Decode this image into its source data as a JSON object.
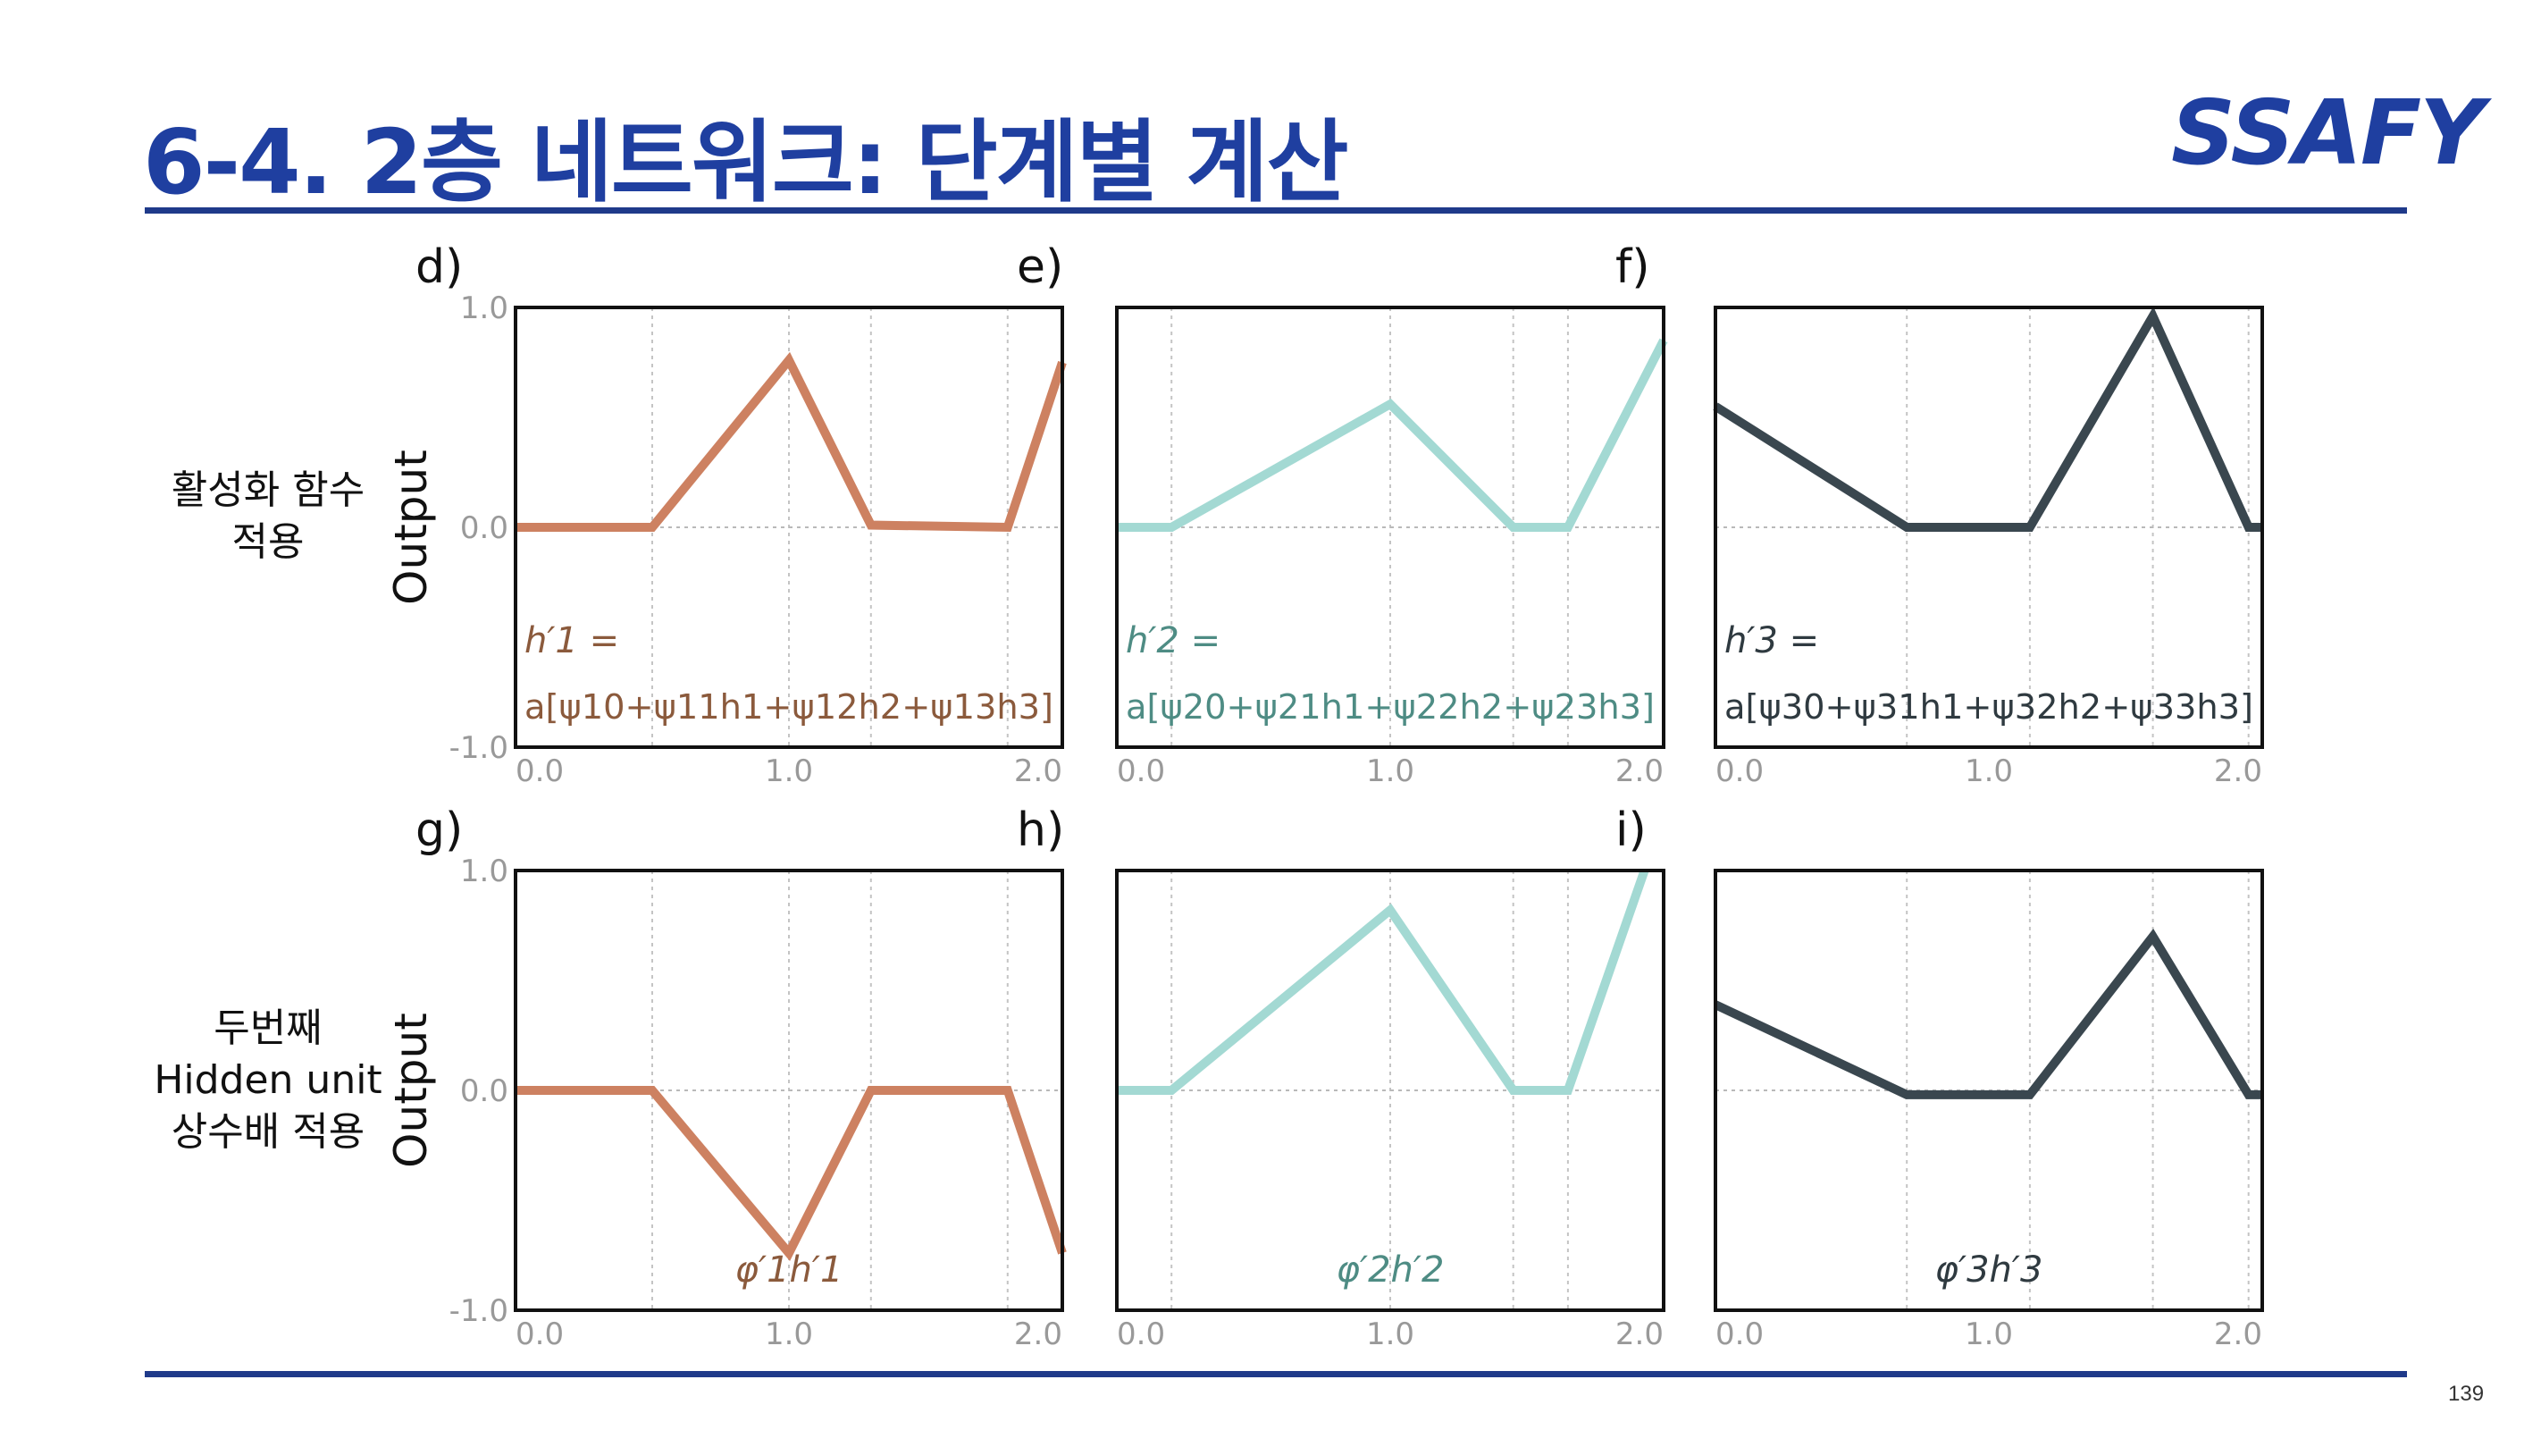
{
  "slide": {
    "title": "6-4. 2층 네트워크: 단계별 계산",
    "logo": "SSAFY",
    "page_number": "139",
    "row_labels": [
      [
        "활성화 함수",
        "적용"
      ],
      [
        "두번째",
        "Hidden unit",
        "상수배 적용"
      ]
    ]
  },
  "colors": {
    "title": "#1f3fa0",
    "rule": "#1f3a8a",
    "series_1": "#cd8161",
    "series_2": "#a3d9d3",
    "series_3": "#3a474f"
  },
  "chart_data": [
    {
      "panel": "d)",
      "type": "line",
      "ylabel": "Output",
      "xlim": [
        0,
        2
      ],
      "ylim": [
        -1,
        1
      ],
      "xticks": [
        "0.0",
        "1.0",
        "2.0"
      ],
      "yticks": [
        "1.0",
        "0.0",
        "-1.0"
      ],
      "vlines": [
        0.5,
        1.0,
        1.3,
        1.8
      ],
      "x": [
        0.0,
        0.5,
        1.0,
        1.3,
        1.8,
        2.0
      ],
      "y": [
        0.0,
        0.0,
        0.76,
        0.01,
        0.0,
        0.75
      ],
      "color": "#cd8161",
      "annotation": [
        "h′1 =",
        "a[ψ10+ψ11h1+ψ12h2+ψ13h3]"
      ]
    },
    {
      "panel": "e)",
      "type": "line",
      "ylabel": "",
      "xlim": [
        0,
        2
      ],
      "ylim": [
        -1,
        1
      ],
      "xticks": [
        "0.0",
        "1.0",
        "2.0"
      ],
      "yticks": [],
      "vlines": [
        0.2,
        1.0,
        1.45,
        1.65
      ],
      "x": [
        0.0,
        0.2,
        1.0,
        1.45,
        1.65,
        2.0
      ],
      "y": [
        0.0,
        0.0,
        0.56,
        0.0,
        0.0,
        0.85
      ],
      "color": "#a3d9d3",
      "annotation": [
        "h′2 =",
        "a[ψ20+ψ21h1+ψ22h2+ψ23h3]"
      ]
    },
    {
      "panel": "f)",
      "type": "line",
      "ylabel": "",
      "xlim": [
        0,
        2
      ],
      "ylim": [
        -1,
        1
      ],
      "xticks": [
        "0.0",
        "1.0",
        "2.0"
      ],
      "yticks": [],
      "vlines": [
        0.7,
        1.15,
        1.6,
        1.95
      ],
      "x": [
        0.0,
        0.7,
        1.15,
        1.6,
        1.95,
        2.0
      ],
      "y": [
        0.55,
        0.0,
        0.0,
        0.96,
        0.0,
        0.0
      ],
      "color": "#3a474f",
      "annotation": [
        "h′3 =",
        "a[ψ30+ψ31h1+ψ32h2+ψ33h3]"
      ]
    },
    {
      "panel": "g)",
      "type": "line",
      "ylabel": "Output",
      "xlim": [
        0,
        2
      ],
      "ylim": [
        -1,
        1
      ],
      "xticks": [
        "0.0",
        "1.0",
        "2.0"
      ],
      "yticks": [
        "1.0",
        "0.0",
        "-1.0"
      ],
      "vlines": [
        0.5,
        1.0,
        1.3,
        1.8
      ],
      "x": [
        0.0,
        0.5,
        1.0,
        1.3,
        1.8,
        2.0
      ],
      "y": [
        0.0,
        0.0,
        -0.74,
        0.0,
        0.0,
        -0.74
      ],
      "color": "#cd8161",
      "annotation": [
        "φ′1h′1"
      ]
    },
    {
      "panel": "h)",
      "type": "line",
      "ylabel": "",
      "xlim": [
        0,
        2
      ],
      "ylim": [
        -1,
        1
      ],
      "xticks": [
        "0.0",
        "1.0",
        "2.0"
      ],
      "yticks": [],
      "vlines": [
        0.2,
        1.0,
        1.45,
        1.65
      ],
      "x": [
        0.0,
        0.2,
        1.0,
        1.45,
        1.65,
        1.93
      ],
      "y": [
        0.0,
        0.0,
        0.82,
        0.0,
        0.0,
        1.0
      ],
      "color": "#a3d9d3",
      "annotation": [
        "φ′2h′2"
      ]
    },
    {
      "panel": "i)",
      "type": "line",
      "ylabel": "",
      "xlim": [
        0,
        2
      ],
      "ylim": [
        -1,
        1
      ],
      "xticks": [
        "0.0",
        "1.0",
        "2.0"
      ],
      "yticks": [],
      "vlines": [
        0.7,
        1.15,
        1.6,
        1.95
      ],
      "x": [
        0.0,
        0.7,
        1.15,
        1.6,
        1.95,
        2.0
      ],
      "y": [
        0.39,
        -0.02,
        -0.02,
        0.7,
        -0.02,
        -0.02
      ],
      "color": "#3a474f",
      "annotation": [
        "φ′3h′3"
      ]
    }
  ]
}
